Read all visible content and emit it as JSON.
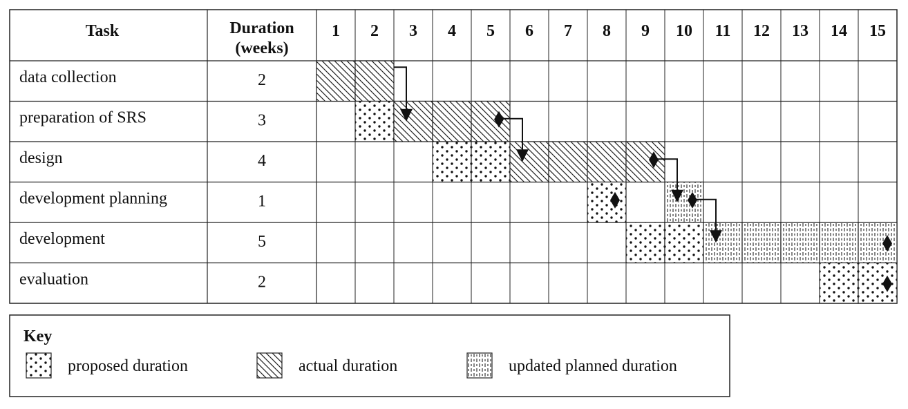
{
  "table": {
    "headers": {
      "task": "Task",
      "duration_line1": "Duration",
      "duration_line2": "(weeks)",
      "weeks": [
        "1",
        "2",
        "3",
        "4",
        "5",
        "6",
        "7",
        "8",
        "9",
        "10",
        "11",
        "12",
        "13",
        "14",
        "15"
      ]
    },
    "rows": [
      {
        "task": "data collection",
        "duration": "2",
        "bars": [
          {
            "pattern": "actual",
            "start_week": 1,
            "end_week": 2
          }
        ],
        "diamond_week": null
      },
      {
        "task": "preparation of SRS",
        "duration": "3",
        "bars": [
          {
            "pattern": "proposed",
            "start_week": 2,
            "end_week": 2
          },
          {
            "pattern": "actual",
            "start_week": 3,
            "end_week": 5
          }
        ],
        "diamond_week": 5
      },
      {
        "task": "design",
        "duration": "4",
        "bars": [
          {
            "pattern": "proposed",
            "start_week": 4,
            "end_week": 5
          },
          {
            "pattern": "actual",
            "start_week": 6,
            "end_week": 9
          }
        ],
        "diamond_week": 9
      },
      {
        "task": "development planning",
        "duration": "1",
        "bars": [
          {
            "pattern": "proposed",
            "start_week": 8,
            "end_week": 8
          },
          {
            "pattern": "updated",
            "start_week": 10,
            "end_week": 10
          }
        ],
        "diamond_week": 10,
        "extra_diamond_week": 8
      },
      {
        "task": "development",
        "duration": "5",
        "bars": [
          {
            "pattern": "proposed",
            "start_week": 9,
            "end_week": 10
          },
          {
            "pattern": "updated",
            "start_week": 11,
            "end_week": 15
          }
        ],
        "diamond_week": 15
      },
      {
        "task": "evaluation",
        "duration": "2",
        "bars": [
          {
            "pattern": "proposed",
            "start_week": 14,
            "end_week": 15
          }
        ],
        "diamond_week": 15
      }
    ],
    "dependencies": [
      {
        "from_row": 0,
        "from_week": 2,
        "to_row": 1,
        "to_week": 3
      },
      {
        "from_row": 1,
        "from_week": 5,
        "to_row": 2,
        "to_week": 6
      },
      {
        "from_row": 2,
        "from_week": 9,
        "to_row": 3,
        "to_week": 10
      },
      {
        "from_row": 3,
        "from_week": 10,
        "to_row": 4,
        "to_week": 11
      }
    ]
  },
  "key": {
    "title": "Key",
    "items": [
      {
        "pattern": "proposed",
        "label": "proposed duration"
      },
      {
        "pattern": "actual",
        "label": "actual duration"
      },
      {
        "pattern": "updated",
        "label": "updated planned duration"
      }
    ]
  }
}
